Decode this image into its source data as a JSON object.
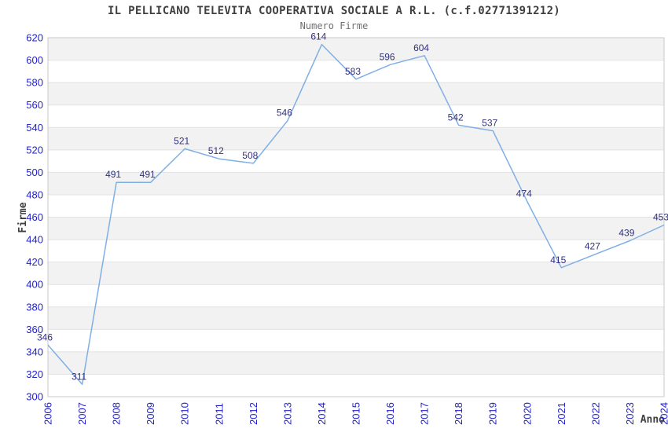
{
  "page": {
    "title": "IL PELLICANO TELEVITA COOPERATIVA SOCIALE A R.L. (c.f.02771391212)",
    "subtitle": "Numero Firme"
  },
  "chart_data": {
    "type": "line",
    "title": "IL PELLICANO TELEVITA COOPERATIVA SOCIALE A R.L. (c.f.02771391212)",
    "subtitle": "Numero Firme",
    "xlabel": "Anno",
    "ylabel": "Firme",
    "categories": [
      "2006",
      "2007",
      "2008",
      "2009",
      "2010",
      "2011",
      "2012",
      "2013",
      "2014",
      "2015",
      "2016",
      "2017",
      "2018",
      "2019",
      "2020",
      "2021",
      "2022",
      "2023",
      "2024"
    ],
    "values": [
      346,
      311,
      491,
      491,
      521,
      512,
      508,
      546,
      614,
      583,
      596,
      604,
      542,
      537,
      474,
      415,
      427,
      439,
      453
    ],
    "ylim": [
      300,
      620
    ],
    "ytick_step": 20,
    "grid": "horizontal-bands",
    "legend": "none",
    "data_labels": true,
    "colors": {
      "line": "#7fafe4",
      "tick_label": "#2222cc",
      "data_label": "#31317d",
      "band_gray": "#f2f2f2",
      "band_white": "#ffffff",
      "grid_line": "#e2e2e2",
      "border": "#c8c8c8",
      "title": "#404040",
      "subtitle": "#707070",
      "axis_title": "#404040"
    }
  }
}
